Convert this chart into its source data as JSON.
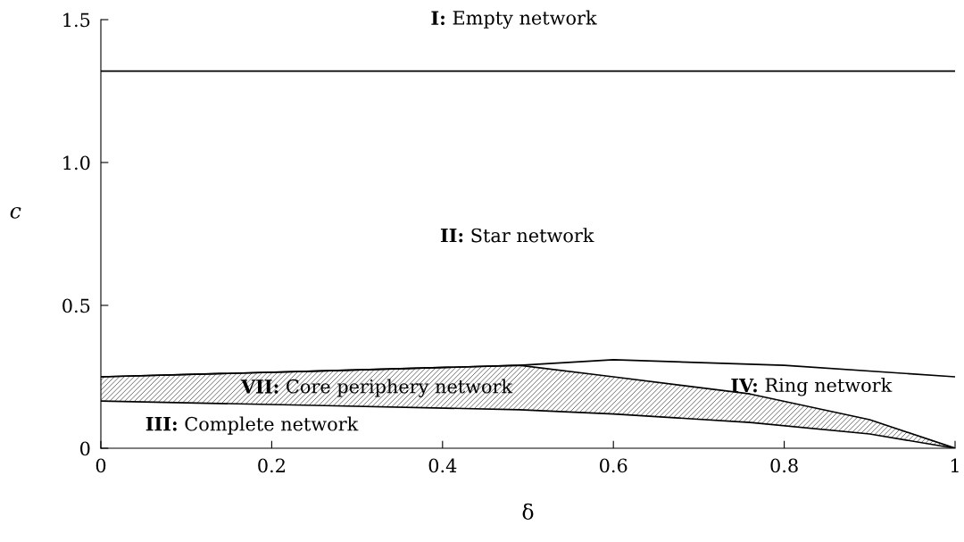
{
  "chart_data": {
    "type": "line",
    "xlabel": "δ",
    "ylabel": "c",
    "xlim": [
      0,
      1
    ],
    "ylim": [
      0,
      1.5
    ],
    "xticks": [
      0,
      0.2,
      0.4,
      0.6,
      0.8,
      1
    ],
    "yticks": [
      0,
      0.5,
      {
        "value": 1.0,
        "label": "1.0"
      },
      1.5
    ],
    "grid": false,
    "legend": false,
    "stacked": true,
    "series": [
      {
        "color": "#000000",
        "x": [
          0,
          0.25,
          0.49,
          0.6,
          0.8,
          1
        ],
        "values": [
          0.25,
          0.27,
          0.29,
          0.31,
          0.29,
          0.25
        ]
      },
      {
        "type": "area",
        "color": "#ffffff",
        "x": [
          0,
          0.25,
          0.49,
          0.6,
          0.76,
          0.9,
          1
        ],
        "values": [
          0.165,
          0.15,
          0.135,
          0.12,
          0.09,
          0.05,
          0
        ]
      },
      {
        "type": "area",
        "color": "#555555",
        "x": [
          0,
          0.25,
          0.49,
          0.6,
          0.76,
          0.9,
          1
        ],
        "values": [
          0.085,
          0.12,
          0.155,
          0.13,
          0.1,
          0.05,
          0
        ]
      }
    ],
    "ref_lines": [
      {
        "axis": "y",
        "value": 1.32,
        "color": "#000000"
      }
    ],
    "annotations": [
      "I: Empty network",
      "II: Star network",
      "VII: Core periphery network",
      "III: Complete network",
      "IV: Ring network"
    ]
  }
}
